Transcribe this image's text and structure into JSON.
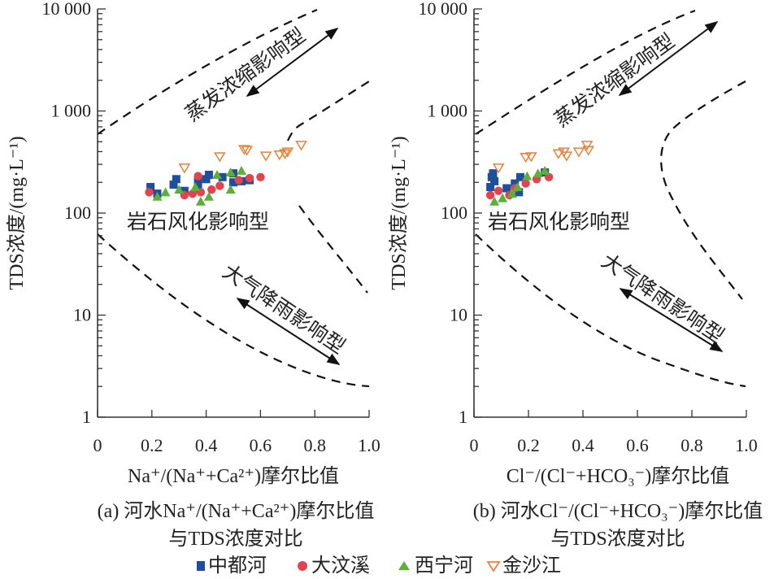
{
  "chart_data": [
    {
      "type": "scatter",
      "panel": "a",
      "xlabel": "Na⁺/(Na⁺+Ca²⁺)摩尔比值",
      "ylabel": "TDS浓度/(mg·L⁻¹)",
      "caption_line1": "(a) 河水Na⁺/(Na⁺+Ca²⁺)摩尔比值",
      "caption_line2": "与TDS浓度对比",
      "xlim": [
        0,
        1.0
      ],
      "ylim": [
        1,
        10000
      ],
      "y_scale": "log",
      "x_ticks": [
        "0",
        "0.2",
        "0.4",
        "0.6",
        "0.8",
        "1.0"
      ],
      "y_ticks": [
        "10 000",
        "1 000",
        "100",
        "10",
        "1"
      ],
      "annotations": {
        "evaporation": "蒸发浓缩影响型",
        "rock": "岩石风化影响型",
        "precipitation": "大气降雨影响型"
      },
      "series": [
        {
          "name": "中都河",
          "x": [
            0.195,
            0.22,
            0.29,
            0.28,
            0.32,
            0.37,
            0.41,
            0.4,
            0.46,
            0.5,
            0.5,
            0.53,
            0.56,
            0.37
          ],
          "y": [
            180,
            155,
            215,
            190,
            165,
            205,
            237,
            215,
            225,
            245,
            200,
            205,
            210,
            175
          ]
        },
        {
          "name": "大汶溪",
          "x": [
            0.19,
            0.37,
            0.32,
            0.35,
            0.38,
            0.42,
            0.45,
            0.52,
            0.56,
            0.6
          ],
          "y": [
            160,
            230,
            150,
            155,
            160,
            170,
            185,
            210,
            220,
            225
          ]
        },
        {
          "name": "西宁河",
          "x": [
            0.22,
            0.25,
            0.3,
            0.36,
            0.38,
            0.41,
            0.44,
            0.49,
            0.53,
            0.49
          ],
          "y": [
            145,
            160,
            170,
            180,
            130,
            145,
            237,
            170,
            260,
            250
          ]
        },
        {
          "name": "金沙江",
          "x": [
            0.32,
            0.45,
            0.54,
            0.55,
            0.62,
            0.67,
            0.69,
            0.7,
            0.75
          ],
          "y": [
            275,
            355,
            417,
            410,
            360,
            370,
            380,
            395,
            460
          ]
        }
      ]
    },
    {
      "type": "scatter",
      "panel": "b",
      "xlabel": "Cl⁻/(Cl⁻+HCO₃⁻)摩尔比值",
      "ylabel": "TDS浓度/(mg·L⁻¹)",
      "caption_line1": "(b) 河水Cl⁻/(Cl⁻+HCO₃⁻)摩尔比值",
      "caption_line2": "与TDS浓度对比",
      "xlim": [
        0,
        1.0
      ],
      "ylim": [
        1,
        10000
      ],
      "y_scale": "log",
      "x_ticks": [
        "0",
        "0.2",
        "0.4",
        "0.6",
        "0.8",
        "1.0"
      ],
      "y_ticks": [
        "10 000",
        "1 000",
        "100",
        "10",
        "1"
      ],
      "annotations": {
        "evaporation": "蒸发浓缩影响型",
        "rock": "岩石风化影响型",
        "precipitation": "大气降雨影响型"
      },
      "series": [
        {
          "name": "中都河",
          "x": [
            0.06,
            0.065,
            0.07,
            0.075,
            0.12,
            0.15,
            0.17,
            0.165,
            0.26
          ],
          "y": [
            180,
            225,
            245,
            205,
            175,
            195,
            225,
            160,
            250
          ]
        },
        {
          "name": "大汶溪",
          "x": [
            0.06,
            0.09,
            0.13,
            0.15,
            0.19,
            0.23,
            0.275
          ],
          "y": [
            150,
            165,
            150,
            175,
            195,
            215,
            225
          ]
        },
        {
          "name": "西宁河",
          "x": [
            0.075,
            0.105,
            0.14,
            0.16,
            0.195,
            0.235,
            0.26
          ],
          "y": [
            130,
            140,
            155,
            180,
            230,
            245,
            260
          ]
        },
        {
          "name": "金沙江",
          "x": [
            0.09,
            0.19,
            0.21,
            0.31,
            0.33,
            0.34,
            0.385,
            0.415,
            0.42
          ],
          "y": [
            275,
            350,
            355,
            380,
            395,
            360,
            395,
            460,
            410
          ]
        }
      ]
    }
  ],
  "legend": {
    "placement": "bottom",
    "items": [
      {
        "label": "中都河",
        "marker": "square",
        "color": "#1f4e9c"
      },
      {
        "label": "大汶溪",
        "marker": "circle",
        "color": "#e0454f"
      },
      {
        "label": "西宁河",
        "marker": "triangle",
        "color": "#5cb03a"
      },
      {
        "label": "金沙江",
        "marker": "triangle-down-open",
        "color": "#e8803a"
      }
    ]
  }
}
